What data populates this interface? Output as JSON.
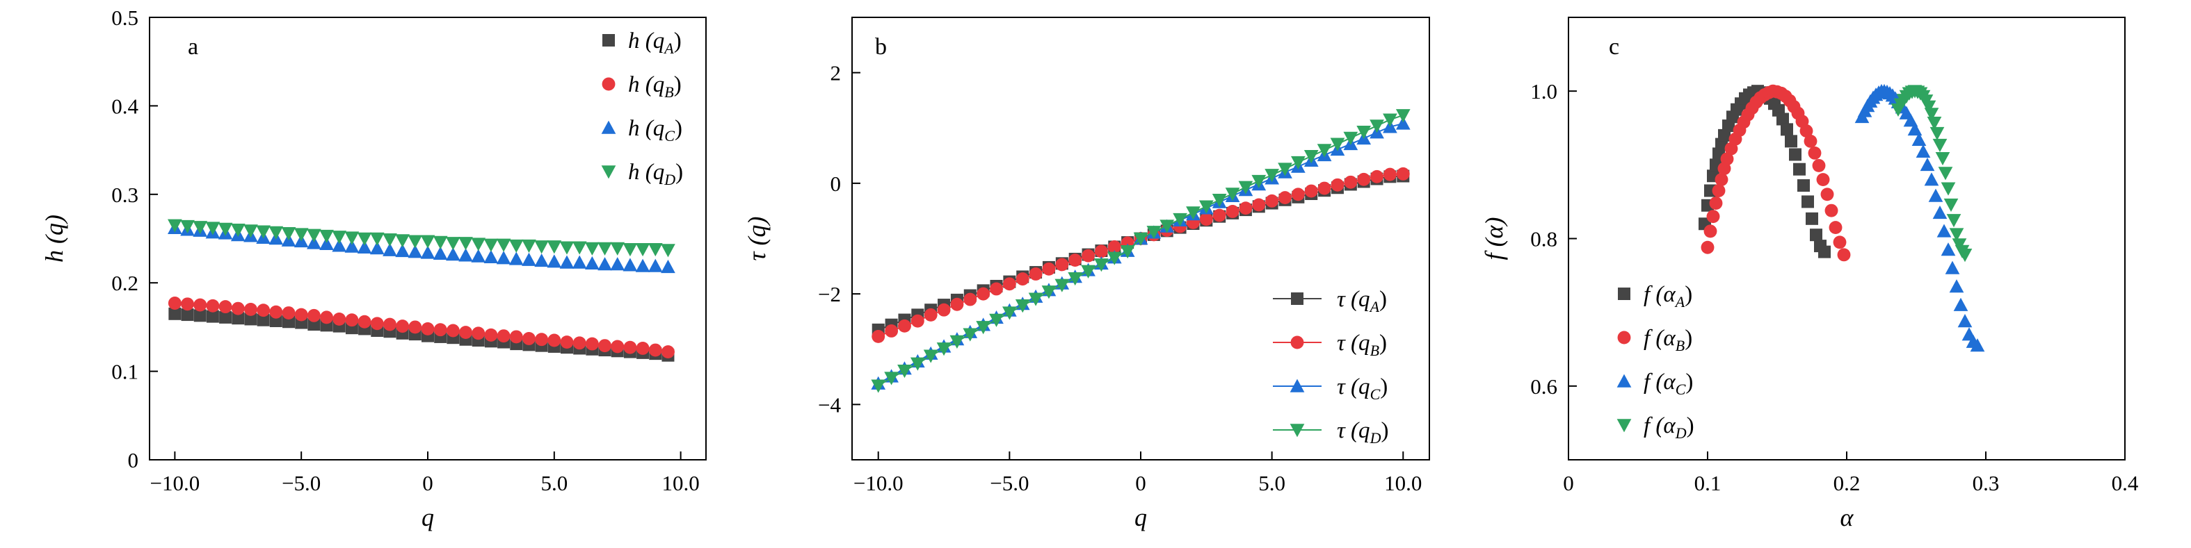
{
  "chart_data": [
    {
      "type": "scatter",
      "panel_label": "a",
      "xlabel": "q",
      "ylabel": "h (q)",
      "xlim": [
        -11.0,
        11.0
      ],
      "ylim": [
        0,
        0.5
      ],
      "xticks": [
        -10,
        -5,
        0,
        5,
        10
      ],
      "xtick_labels": [
        "−10.0",
        "−5.0",
        "0",
        "5.0",
        "10.0"
      ],
      "yticks": [
        0,
        0.1,
        0.2,
        0.3,
        0.4,
        0.5
      ],
      "ytick_labels": [
        "0",
        "0.1",
        "0.2",
        "0.3",
        "0.4",
        "0.5"
      ],
      "legend_position": "top-right",
      "x": [
        -10.0,
        -9.5,
        -9.0,
        -8.5,
        -8.0,
        -7.5,
        -7.0,
        -6.5,
        -6.0,
        -5.5,
        -5.0,
        -4.5,
        -4.0,
        -3.5,
        -3.0,
        -2.5,
        -2.0,
        -1.5,
        -1.0,
        -0.5,
        0.0,
        0.5,
        1.0,
        1.5,
        2.0,
        2.5,
        3.0,
        3.5,
        4.0,
        4.5,
        5.0,
        5.5,
        6.0,
        6.5,
        7.0,
        7.5,
        8.0,
        8.5,
        9.0,
        9.5
      ],
      "series": [
        {
          "name": "h (q_A)",
          "legend_main": "h (q",
          "legend_sub": "A",
          "legend_end": ")",
          "color": "#454545",
          "marker": "square",
          "values": [
            0.165,
            0.164,
            0.163,
            0.162,
            0.161,
            0.16,
            0.159,
            0.158,
            0.157,
            0.156,
            0.155,
            0.153,
            0.152,
            0.151,
            0.149,
            0.148,
            0.146,
            0.145,
            0.143,
            0.142,
            0.14,
            0.139,
            0.138,
            0.136,
            0.135,
            0.134,
            0.133,
            0.131,
            0.13,
            0.129,
            0.128,
            0.127,
            0.126,
            0.125,
            0.124,
            0.123,
            0.122,
            0.121,
            0.12,
            0.118
          ]
        },
        {
          "name": "h (q_B)",
          "legend_main": "h (q",
          "legend_sub": "B",
          "legend_end": ")",
          "color": "#e8383d",
          "marker": "circle",
          "values": [
            0.177,
            0.176,
            0.175,
            0.174,
            0.173,
            0.171,
            0.17,
            0.169,
            0.167,
            0.166,
            0.164,
            0.163,
            0.161,
            0.159,
            0.158,
            0.156,
            0.154,
            0.153,
            0.151,
            0.15,
            0.148,
            0.147,
            0.146,
            0.144,
            0.143,
            0.141,
            0.14,
            0.139,
            0.137,
            0.136,
            0.135,
            0.133,
            0.132,
            0.131,
            0.129,
            0.128,
            0.127,
            0.126,
            0.124,
            0.122
          ]
        },
        {
          "name": "h (q_C)",
          "legend_main": "h (q",
          "legend_sub": "C",
          "legend_end": ")",
          "color": "#1f6fd6",
          "marker": "triangle-up",
          "values": [
            0.262,
            0.26,
            0.259,
            0.257,
            0.256,
            0.254,
            0.253,
            0.251,
            0.25,
            0.248,
            0.247,
            0.245,
            0.244,
            0.242,
            0.241,
            0.24,
            0.239,
            0.237,
            0.236,
            0.235,
            0.234,
            0.233,
            0.232,
            0.231,
            0.23,
            0.229,
            0.228,
            0.227,
            0.226,
            0.225,
            0.224,
            0.223,
            0.223,
            0.222,
            0.221,
            0.221,
            0.22,
            0.219,
            0.219,
            0.218
          ]
        },
        {
          "name": "h (q_D)",
          "legend_main": "h (q",
          "legend_sub": "D",
          "legend_end": ")",
          "color": "#2fa45f",
          "marker": "triangle-down",
          "values": [
            0.265,
            0.264,
            0.263,
            0.262,
            0.261,
            0.26,
            0.259,
            0.258,
            0.257,
            0.256,
            0.255,
            0.254,
            0.253,
            0.252,
            0.251,
            0.25,
            0.25,
            0.249,
            0.248,
            0.247,
            0.247,
            0.246,
            0.245,
            0.245,
            0.244,
            0.243,
            0.243,
            0.242,
            0.242,
            0.241,
            0.241,
            0.24,
            0.24,
            0.239,
            0.239,
            0.239,
            0.238,
            0.238,
            0.238,
            0.237
          ]
        }
      ]
    },
    {
      "type": "line",
      "panel_label": "b",
      "xlabel": "q",
      "ylabel": "τ (q)",
      "xlim": [
        -11.0,
        11.0
      ],
      "ylim": [
        -5,
        3
      ],
      "xticks": [
        -10,
        -5,
        0,
        5,
        10
      ],
      "xtick_labels": [
        "−10.0",
        "−5.0",
        "0",
        "5.0",
        "10.0"
      ],
      "yticks": [
        -4,
        -2,
        0,
        2
      ],
      "ytick_labels": [
        "−4",
        "−2",
        "0",
        "2"
      ],
      "legend_position": "bottom-right",
      "x": [
        -10.0,
        -9.5,
        -9.0,
        -8.5,
        -8.0,
        -7.5,
        -7.0,
        -6.5,
        -6.0,
        -5.5,
        -5.0,
        -4.5,
        -4.0,
        -3.5,
        -3.0,
        -2.5,
        -2.0,
        -1.5,
        -1.0,
        -0.5,
        0.0,
        0.5,
        1.0,
        1.5,
        2.0,
        2.5,
        3.0,
        3.5,
        4.0,
        4.5,
        5.0,
        5.5,
        6.0,
        6.5,
        7.0,
        7.5,
        8.0,
        8.5,
        9.0,
        9.5,
        10.0
      ],
      "series": [
        {
          "name": "τ (q_A)",
          "legend_main": "τ (q",
          "legend_sub": "A",
          "legend_end": ")",
          "color": "#454545",
          "marker": "square",
          "values": [
            -2.65,
            -2.56,
            -2.47,
            -2.38,
            -2.29,
            -2.2,
            -2.11,
            -2.03,
            -1.94,
            -1.86,
            -1.78,
            -1.69,
            -1.61,
            -1.52,
            -1.45,
            -1.37,
            -1.29,
            -1.22,
            -1.15,
            -1.07,
            -1.0,
            -0.93,
            -0.86,
            -0.8,
            -0.73,
            -0.67,
            -0.6,
            -0.54,
            -0.48,
            -0.42,
            -0.36,
            -0.3,
            -0.25,
            -0.19,
            -0.13,
            -0.08,
            -0.02,
            0.03,
            0.08,
            0.12,
            0.13
          ]
        },
        {
          "name": "τ (q_B)",
          "legend_main": "τ (q",
          "legend_sub": "B",
          "legend_end": ")",
          "color": "#e8383d",
          "marker": "circle",
          "values": [
            -2.77,
            -2.67,
            -2.58,
            -2.49,
            -2.38,
            -2.29,
            -2.19,
            -2.1,
            -2.0,
            -1.91,
            -1.82,
            -1.73,
            -1.64,
            -1.55,
            -1.47,
            -1.39,
            -1.31,
            -1.23,
            -1.15,
            -1.08,
            -1.0,
            -0.93,
            -0.85,
            -0.78,
            -0.71,
            -0.65,
            -0.58,
            -0.51,
            -0.45,
            -0.39,
            -0.32,
            -0.26,
            -0.2,
            -0.14,
            -0.09,
            -0.03,
            0.02,
            0.07,
            0.12,
            0.16,
            0.17
          ]
        },
        {
          "name": "τ (q_C)",
          "legend_main": "τ (q",
          "legend_sub": "C",
          "legend_end": ")",
          "color": "#1f6fd6",
          "marker": "triangle-up",
          "values": [
            -3.62,
            -3.49,
            -3.35,
            -3.22,
            -3.08,
            -2.95,
            -2.82,
            -2.69,
            -2.56,
            -2.43,
            -2.3,
            -2.18,
            -2.05,
            -1.93,
            -1.81,
            -1.69,
            -1.57,
            -1.45,
            -1.34,
            -1.22,
            -1.0,
            -0.89,
            -0.78,
            -0.67,
            -0.56,
            -0.45,
            -0.34,
            -0.23,
            -0.12,
            -0.02,
            0.09,
            0.2,
            0.3,
            0.41,
            0.51,
            0.61,
            0.71,
            0.81,
            0.92,
            1.02,
            1.08
          ]
        },
        {
          "name": "τ (q_D)",
          "legend_main": "τ (q",
          "legend_sub": "D",
          "legend_end": ")",
          "color": "#2fa45f",
          "marker": "triangle-down",
          "values": [
            -3.66,
            -3.52,
            -3.39,
            -3.26,
            -3.12,
            -2.99,
            -2.86,
            -2.73,
            -2.6,
            -2.47,
            -2.34,
            -2.21,
            -2.09,
            -1.96,
            -1.84,
            -1.72,
            -1.59,
            -1.47,
            -1.35,
            -1.23,
            -1.0,
            -0.88,
            -0.77,
            -0.65,
            -0.53,
            -0.42,
            -0.3,
            -0.19,
            -0.07,
            0.04,
            0.15,
            0.26,
            0.38,
            0.49,
            0.6,
            0.71,
            0.82,
            0.93,
            1.04,
            1.15,
            1.23
          ]
        }
      ]
    },
    {
      "type": "scatter",
      "panel_label": "c",
      "xlabel": "α",
      "ylabel": "f (α)",
      "xlim": [
        0,
        0.4
      ],
      "ylim": [
        0.5,
        1.1
      ],
      "xticks": [
        0,
        0.1,
        0.2,
        0.3,
        0.4
      ],
      "xtick_labels": [
        "0",
        "0.1",
        "0.2",
        "0.3",
        "0.4"
      ],
      "yticks": [
        0.6,
        0.8,
        1.0
      ],
      "ytick_labels": [
        "0.6",
        "0.8",
        "1.0"
      ],
      "legend_position": "bottom-left",
      "series": [
        {
          "name": "f (α_A)",
          "legend_main": "f (α",
          "legend_sub": "A",
          "legend_end": ")",
          "color": "#454545",
          "marker": "square",
          "x": [
            0.098,
            0.1,
            0.102,
            0.104,
            0.106,
            0.108,
            0.11,
            0.112,
            0.115,
            0.118,
            0.121,
            0.124,
            0.127,
            0.13,
            0.133,
            0.136,
            0.139,
            0.142,
            0.145,
            0.148,
            0.151,
            0.154,
            0.157,
            0.16,
            0.163,
            0.166,
            0.169,
            0.172,
            0.175,
            0.178,
            0.181,
            0.184
          ],
          "y": [
            0.82,
            0.845,
            0.865,
            0.885,
            0.9,
            0.915,
            0.928,
            0.94,
            0.953,
            0.965,
            0.975,
            0.983,
            0.99,
            0.995,
            0.998,
            1.0,
            0.998,
            0.995,
            0.99,
            0.983,
            0.974,
            0.962,
            0.948,
            0.932,
            0.914,
            0.894,
            0.872,
            0.85,
            0.827,
            0.805,
            0.79,
            0.782
          ]
        },
        {
          "name": "f (α_B)",
          "legend_main": "f (α",
          "legend_sub": "B",
          "legend_end": ")",
          "color": "#e8383d",
          "marker": "circle",
          "x": [
            0.1,
            0.102,
            0.104,
            0.106,
            0.108,
            0.11,
            0.112,
            0.114,
            0.117,
            0.12,
            0.123,
            0.126,
            0.129,
            0.132,
            0.135,
            0.138,
            0.141,
            0.144,
            0.147,
            0.15,
            0.153,
            0.156,
            0.159,
            0.162,
            0.165,
            0.168,
            0.171,
            0.174,
            0.177,
            0.18,
            0.183,
            0.186,
            0.189,
            0.192,
            0.195,
            0.198
          ],
          "y": [
            0.788,
            0.81,
            0.83,
            0.848,
            0.865,
            0.88,
            0.895,
            0.908,
            0.922,
            0.935,
            0.947,
            0.958,
            0.968,
            0.977,
            0.985,
            0.991,
            0.995,
            0.998,
            1.0,
            0.999,
            0.997,
            0.993,
            0.987,
            0.979,
            0.97,
            0.959,
            0.946,
            0.932,
            0.916,
            0.899,
            0.88,
            0.86,
            0.838,
            0.815,
            0.795,
            0.778
          ]
        },
        {
          "name": "f (α_C)",
          "legend_main": "f (α",
          "legend_sub": "C",
          "legend_end": ")",
          "color": "#1f6fd6",
          "marker": "triangle-up",
          "x": [
            0.211,
            0.213,
            0.215,
            0.217,
            0.219,
            0.221,
            0.223,
            0.225,
            0.227,
            0.229,
            0.231,
            0.233,
            0.235,
            0.237,
            0.24,
            0.243,
            0.246,
            0.249,
            0.252,
            0.255,
            0.258,
            0.261,
            0.264,
            0.267,
            0.27,
            0.273,
            0.276,
            0.279,
            0.282,
            0.285,
            0.288,
            0.291,
            0.294
          ],
          "y": [
            0.965,
            0.973,
            0.98,
            0.986,
            0.991,
            0.995,
            0.998,
            1.0,
            1.0,
            0.999,
            0.997,
            0.994,
            0.99,
            0.985,
            0.978,
            0.97,
            0.96,
            0.948,
            0.934,
            0.918,
            0.9,
            0.88,
            0.858,
            0.835,
            0.81,
            0.785,
            0.76,
            0.735,
            0.71,
            0.688,
            0.67,
            0.66,
            0.655
          ]
        },
        {
          "name": "f (α_D)",
          "legend_main": "f (α",
          "legend_sub": "D",
          "legend_end": ")",
          "color": "#2fa45f",
          "marker": "triangle-down",
          "x": [
            0.237,
            0.239,
            0.241,
            0.243,
            0.245,
            0.247,
            0.249,
            0.251,
            0.253,
            0.255,
            0.257,
            0.259,
            0.261,
            0.263,
            0.265,
            0.267,
            0.269,
            0.271,
            0.273,
            0.275,
            0.277,
            0.279,
            0.281,
            0.283,
            0.285
          ],
          "y": [
            0.975,
            0.982,
            0.988,
            0.993,
            0.997,
            0.999,
            1.0,
            0.999,
            0.997,
            0.993,
            0.987,
            0.979,
            0.969,
            0.957,
            0.943,
            0.927,
            0.909,
            0.889,
            0.868,
            0.846,
            0.825,
            0.806,
            0.792,
            0.783,
            0.778
          ]
        }
      ]
    }
  ]
}
